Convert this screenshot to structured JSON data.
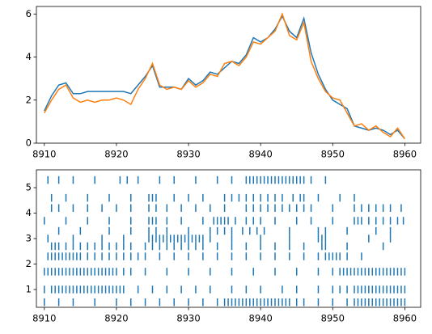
{
  "chart_data": [
    {
      "type": "line",
      "x": [
        8910,
        8911,
        8912,
        8913,
        8914,
        8915,
        8916,
        8917,
        8918,
        8919,
        8920,
        8921,
        8922,
        8923,
        8924,
        8925,
        8926,
        8927,
        8928,
        8929,
        8930,
        8931,
        8932,
        8933,
        8934,
        8935,
        8936,
        8937,
        8938,
        8939,
        8940,
        8941,
        8942,
        8943,
        8944,
        8945,
        8946,
        8947,
        8948,
        8949,
        8950,
        8951,
        8952,
        8953,
        8954,
        8955,
        8956,
        8957,
        8958,
        8959,
        8960
      ],
      "series": [
        {
          "color": "#1f77b4",
          "values": [
            1.5,
            2.2,
            2.7,
            2.8,
            2.3,
            2.3,
            2.4,
            2.4,
            2.4,
            2.4,
            2.4,
            2.4,
            2.3,
            2.7,
            3.1,
            3.6,
            2.6,
            2.6,
            2.6,
            2.5,
            3.0,
            2.7,
            2.9,
            3.3,
            3.2,
            3.5,
            3.8,
            3.7,
            4.1,
            4.9,
            4.7,
            4.9,
            5.3,
            5.9,
            5.2,
            4.9,
            5.8,
            4.2,
            3.2,
            2.5,
            2.0,
            1.8,
            1.6,
            0.8,
            0.7,
            0.6,
            0.7,
            0.6,
            0.4,
            0.6,
            0.2
          ]
        },
        {
          "color": "#ff7f0e",
          "values": [
            1.4,
            2.0,
            2.5,
            2.7,
            2.1,
            1.9,
            2.0,
            1.9,
            2.0,
            2.0,
            2.1,
            2.0,
            1.8,
            2.5,
            3.0,
            3.7,
            2.7,
            2.5,
            2.6,
            2.5,
            2.9,
            2.6,
            2.8,
            3.2,
            3.1,
            3.7,
            3.8,
            3.6,
            4.0,
            4.7,
            4.6,
            4.9,
            5.2,
            6.0,
            5.0,
            4.8,
            5.6,
            3.8,
            3.0,
            2.4,
            2.1,
            2.0,
            1.4,
            0.8,
            0.9,
            0.6,
            0.8,
            0.5,
            0.3,
            0.7,
            0.2
          ]
        }
      ],
      "xlim": [
        8908.9,
        8962.2
      ],
      "xticks": [
        8910,
        8920,
        8930,
        8940,
        8950,
        8960
      ],
      "ylim": [
        0,
        6.35
      ],
      "yticks": [
        0,
        2,
        4,
        6
      ]
    },
    {
      "type": "eventplot",
      "color": "#1f77b4",
      "series": [
        {
          "lineoffset": 5.3,
          "events": [
            8910.5,
            8912,
            8914,
            8917,
            8920.5,
            8921.5,
            8923,
            8926,
            8928,
            8931,
            8934,
            8936,
            8938,
            8938.5,
            8939,
            8939.5,
            8940,
            8940.5,
            8941,
            8941.5,
            8942,
            8942.5,
            8943,
            8943.5,
            8944,
            8944.5,
            8945,
            8945.5,
            8946,
            8947,
            8949
          ]
        },
        {
          "lineoffset": 4.6,
          "events": [
            8911,
            8913,
            8916,
            8919,
            8922,
            8924.5,
            8925,
            8925.5,
            8928,
            8930,
            8932,
            8935,
            8936,
            8937,
            8938,
            8939,
            8940,
            8941,
            8942,
            8943,
            8944.5,
            8945.5,
            8946,
            8948,
            8951,
            8953
          ]
        },
        {
          "lineoffset": 4.2,
          "events": [
            8911,
            8912,
            8914,
            8916,
            8918,
            8920,
            8922,
            8924.5,
            8925.5,
            8927,
            8929,
            8931,
            8933,
            8935,
            8938,
            8939,
            8940,
            8941,
            8942,
            8943,
            8944,
            8945,
            8946,
            8947,
            8950,
            8953,
            8954,
            8955,
            8956,
            8957,
            8958,
            8959.5
          ]
        },
        {
          "lineoffset": 3.7,
          "events": [
            8910,
            8913,
            8916,
            8919,
            8922,
            8924.5,
            8925,
            8925.5,
            8927,
            8929,
            8932,
            8933.5,
            8934,
            8934.5,
            8935,
            8935.5,
            8936.5,
            8938,
            8939,
            8940,
            8942,
            8945,
            8947,
            8950,
            8953,
            8953.5,
            8954,
            8955,
            8956,
            8957,
            8958,
            8959,
            8959.8
          ]
        },
        {
          "lineoffset": 3.3,
          "events": [
            8912,
            8915,
            8919,
            8922,
            8924.5,
            8925.5,
            8927,
            8930,
            8933,
            8934,
            8935,
            8936,
            8937.5,
            8938.5,
            8939.5,
            8940.5,
            8944,
            8948,
            8949,
            8952,
            8956,
            8958
          ]
        },
        {
          "lineoffset": 3.0,
          "events": [
            8910.5,
            8914,
            8918,
            8921,
            8924.5,
            8925,
            8925.5,
            8926,
            8926.5,
            8927,
            8927.5,
            8928,
            8928.5,
            8929,
            8929.5,
            8930,
            8930.5,
            8931,
            8931.5,
            8932,
            8933,
            8936,
            8940,
            8944,
            8948,
            8948.5,
            8949,
            8955,
            8958
          ]
        },
        {
          "lineoffset": 2.7,
          "events": [
            8911,
            8911.5,
            8912,
            8913,
            8914,
            8915,
            8916,
            8917,
            8918,
            8919,
            8920,
            8921,
            8922,
            8924,
            8925,
            8926,
            8927,
            8928,
            8929,
            8930,
            8931,
            8932,
            8934,
            8936,
            8938,
            8940,
            8942,
            8944,
            8946,
            8948.5,
            8949,
            8952,
            8957
          ]
        },
        {
          "lineoffset": 2.3,
          "events": [
            8910.5,
            8911,
            8911.5,
            8912,
            8912.5,
            8913,
            8913.5,
            8914,
            8914.5,
            8915,
            8916,
            8917,
            8918,
            8919,
            8920,
            8921,
            8922,
            8923,
            8924,
            8926,
            8928,
            8930,
            8932,
            8934,
            8936,
            8938,
            8940,
            8942,
            8944,
            8946,
            8948,
            8949,
            8949.5,
            8950,
            8950.5,
            8951,
            8952,
            8954
          ]
        },
        {
          "lineoffset": 1.7,
          "events": [
            8910,
            8910.5,
            8911,
            8911.5,
            8912,
            8912.5,
            8913,
            8913.5,
            8914,
            8914.5,
            8915,
            8915.5,
            8916,
            8916.5,
            8917,
            8917.5,
            8918,
            8918.5,
            8919,
            8919.5,
            8920,
            8921,
            8922,
            8924,
            8927,
            8930,
            8933,
            8936,
            8939,
            8942,
            8945,
            8948,
            8950,
            8951,
            8951.5,
            8952,
            8952.5,
            8953,
            8953.5,
            8954,
            8954.5,
            8955,
            8955.5,
            8956,
            8956.5,
            8957,
            8957.5,
            8958,
            8958.5,
            8959,
            8959.5,
            8960
          ]
        },
        {
          "lineoffset": 1.0,
          "events": [
            8910,
            8911,
            8911.5,
            8912,
            8912.5,
            8913,
            8913.5,
            8914,
            8914.5,
            8915,
            8915.5,
            8916,
            8916.5,
            8917,
            8917.5,
            8918,
            8918.5,
            8919,
            8919.5,
            8920,
            8920.5,
            8921,
            8923,
            8925,
            8927,
            8929,
            8931,
            8933,
            8936,
            8938,
            8940,
            8943,
            8945,
            8948,
            8950,
            8951,
            8952,
            8953,
            8953.5,
            8954,
            8954.5,
            8955,
            8955.5,
            8956,
            8956.5,
            8957,
            8957.5,
            8958,
            8958.5,
            8959,
            8959.5,
            8960
          ]
        },
        {
          "lineoffset": 0.5,
          "events": [
            8910,
            8912,
            8914,
            8917,
            8920,
            8922,
            8924,
            8926,
            8928,
            8930,
            8932,
            8934,
            8935,
            8935.5,
            8936,
            8936.5,
            8937,
            8937.5,
            8938,
            8938.5,
            8939,
            8939.5,
            8940,
            8940.5,
            8941,
            8941.5,
            8942,
            8942.5,
            8943,
            8943.5,
            8944,
            8945,
            8946,
            8948,
            8950,
            8952,
            8953,
            8953.5,
            8954,
            8954.5,
            8955,
            8955.5,
            8956,
            8956.5,
            8957,
            8957.5,
            8958,
            8958.5,
            8959,
            8959.5,
            8960
          ]
        }
      ],
      "xlim": [
        8908.9,
        8962.2
      ],
      "xticks": [
        8910,
        8920,
        8930,
        8940,
        8950,
        8960
      ],
      "ylim": [
        0.3,
        5.7
      ],
      "yticks": [
        1,
        2,
        3,
        4,
        5
      ]
    }
  ]
}
